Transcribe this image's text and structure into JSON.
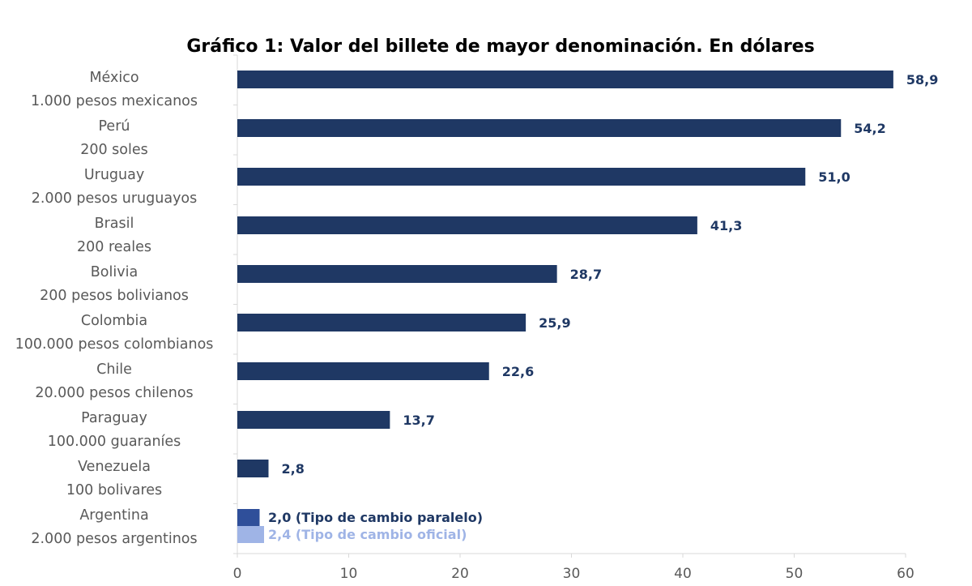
{
  "chart_data": {
    "type": "bar",
    "orientation": "horizontal",
    "title": "Gráfico 1: Valor del billete de mayor denominación. En dólares",
    "categories": [
      [
        "México",
        "1.000 pesos mexicanos"
      ],
      [
        "Perú",
        "200 soles"
      ],
      [
        "Uruguay",
        "2.000 pesos uruguayos"
      ],
      [
        "Brasil",
        "200 reales"
      ],
      [
        "Bolivia",
        "200 pesos bolivianos"
      ],
      [
        "Colombia",
        "100.000 pesos colombianos"
      ],
      [
        "Chile",
        "20.000 pesos chilenos"
      ],
      [
        "Paraguay",
        "100.000 guaraníes"
      ],
      [
        "Venezuela",
        "100 bolivares"
      ],
      [
        "Argentina",
        "2.000 pesos argentinos"
      ]
    ],
    "values": [
      58.9,
      54.2,
      51.0,
      41.3,
      28.7,
      25.9,
      22.6,
      13.7,
      2.8,
      null
    ],
    "labels": [
      "58,9",
      "54,2",
      "51,0",
      "41,3",
      "28,7",
      "25,9",
      "22,6",
      "13,7",
      "2,8",
      ""
    ],
    "argentina": [
      {
        "value": 2.0,
        "label": "2,0 (Tipo de cambio paralelo)",
        "color": "#2F4F9A"
      },
      {
        "value": 2.4,
        "label": "2,4 (Tipo de cambio oficial)",
        "color": "#9FB4E6"
      }
    ],
    "bar_color": "#1F3864",
    "xlim": [
      0,
      60
    ],
    "xticks": [
      "0",
      "10",
      "20",
      "30",
      "40",
      "50",
      "60"
    ],
    "grid": false
  }
}
